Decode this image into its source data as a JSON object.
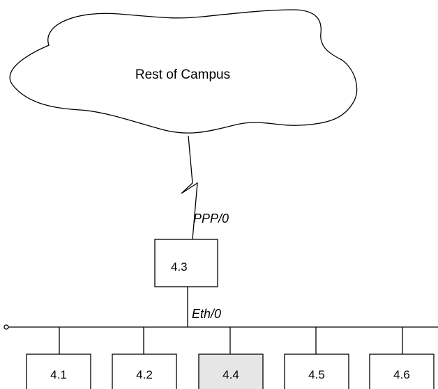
{
  "cloud": {
    "label": "Rest of Campus"
  },
  "links": {
    "wan_interface": "PPP/0",
    "lan_interface": "Eth/0"
  },
  "router": {
    "label": "4.3",
    "fill": "#ffffff"
  },
  "hosts": [
    {
      "label": "4.1",
      "fill": "#ffffff"
    },
    {
      "label": "4.2",
      "fill": "#ffffff"
    },
    {
      "label": "4.4",
      "fill": "#e6e6e6"
    },
    {
      "label": "4.5",
      "fill": "#ffffff"
    },
    {
      "label": "4.6",
      "fill": "#ffffff"
    }
  ]
}
